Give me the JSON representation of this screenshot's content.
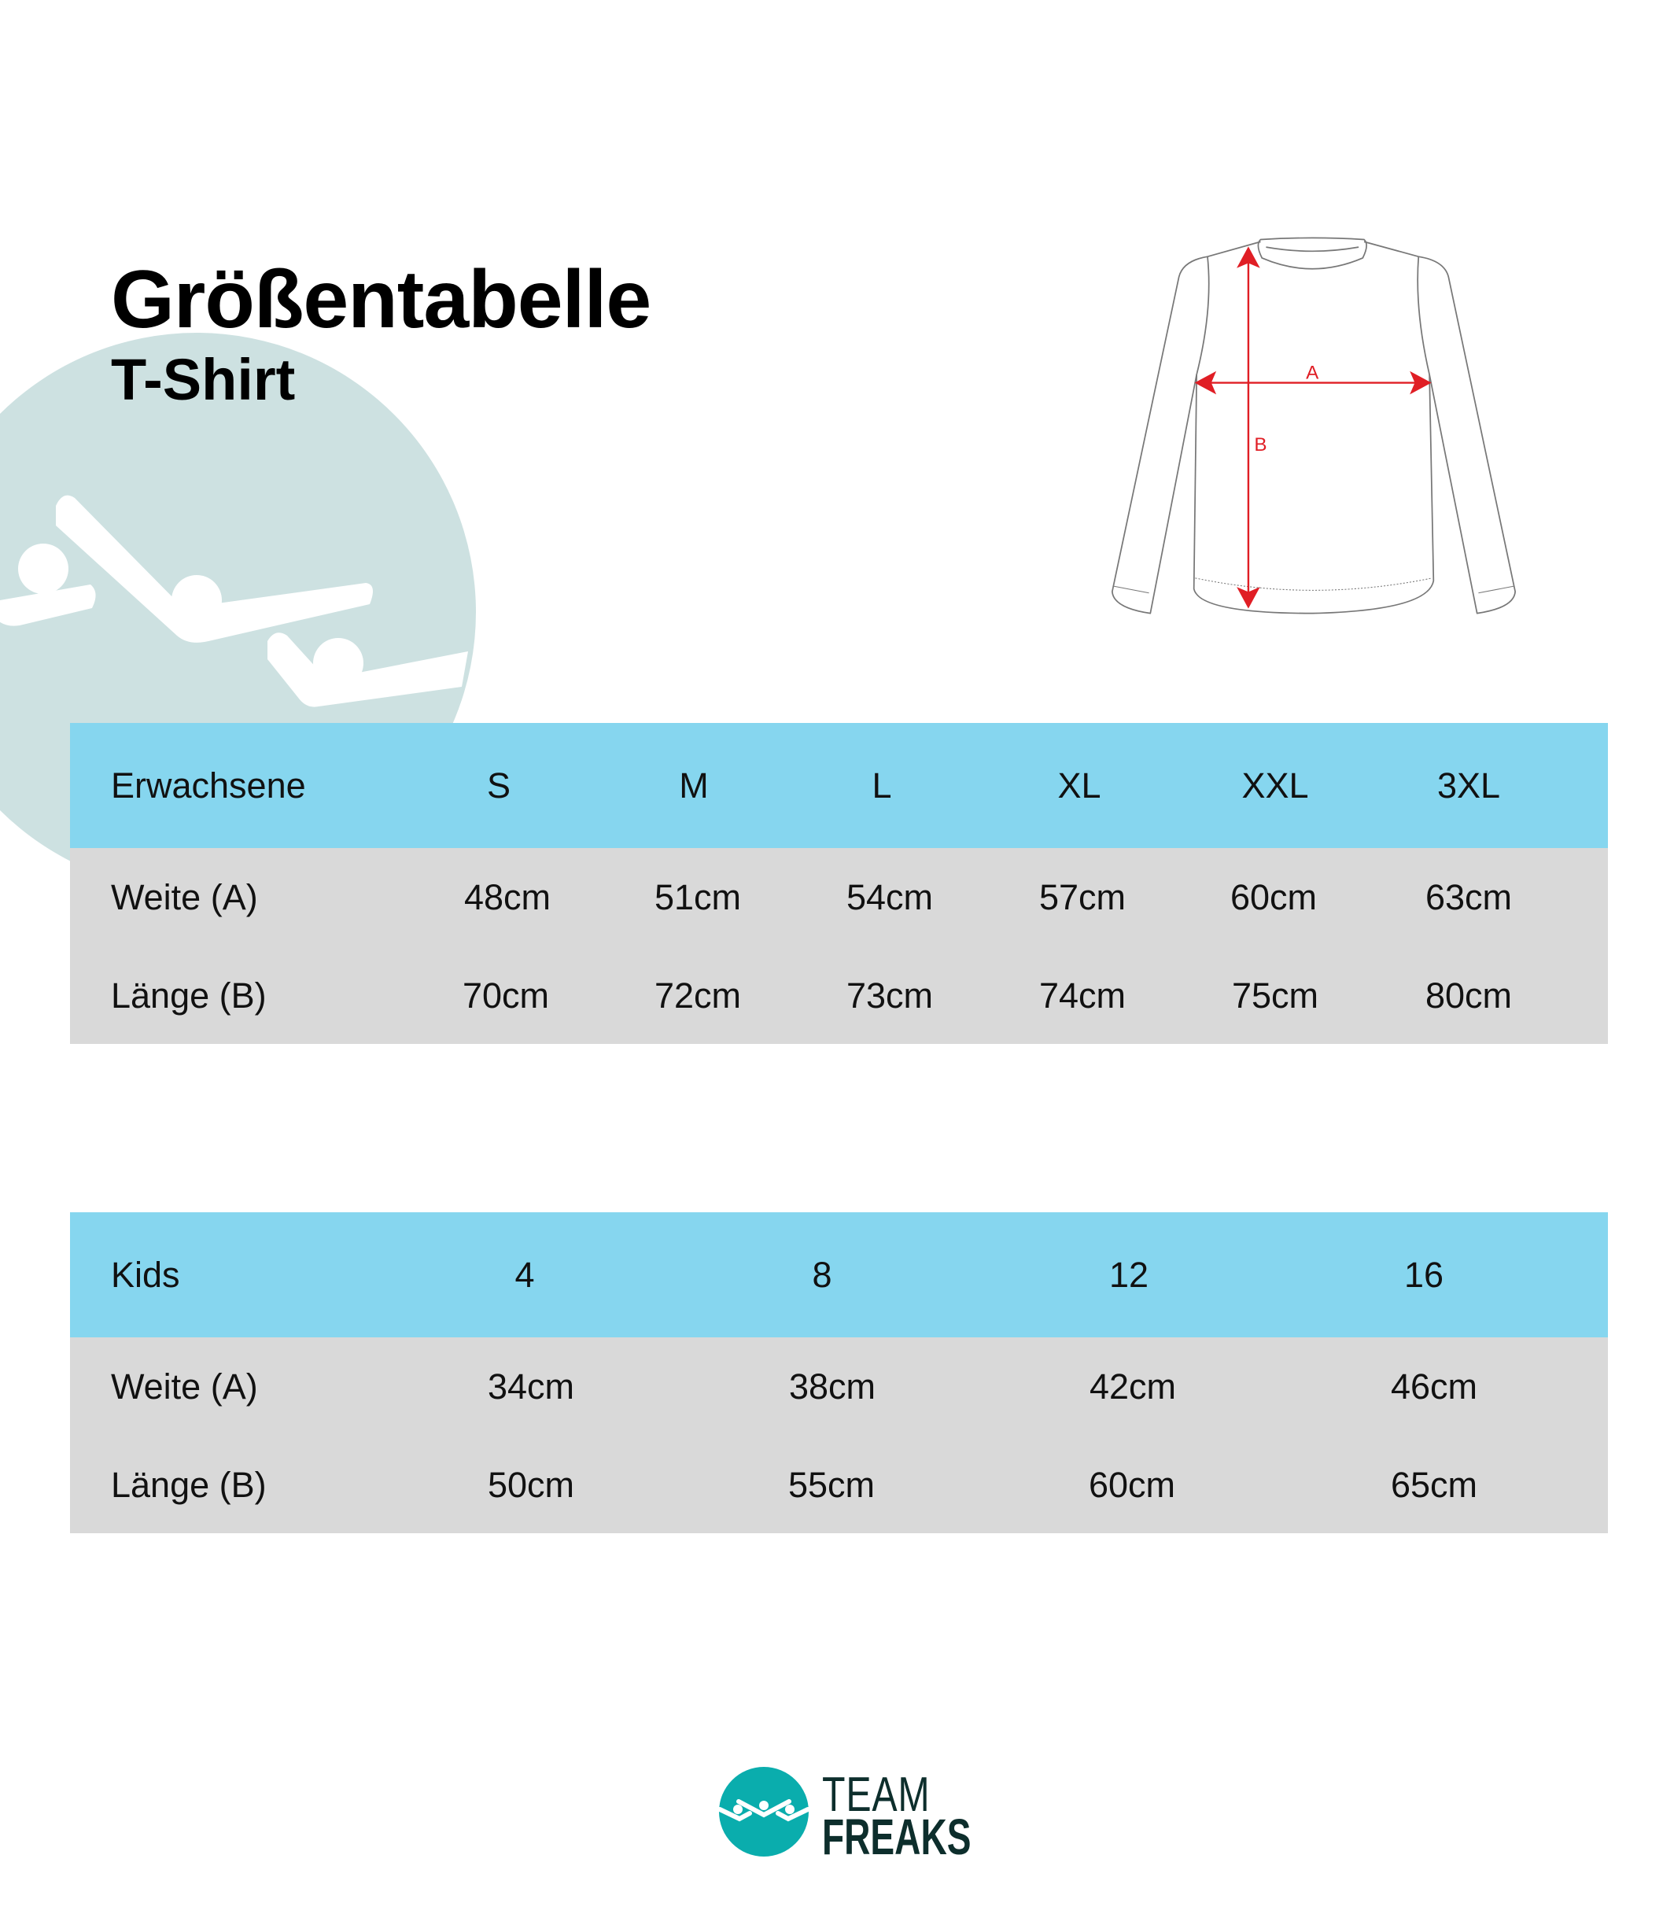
{
  "header": {
    "title": "Größentabelle",
    "subtitle": "T-Shirt"
  },
  "diagram": {
    "label_a": "A",
    "label_b": "B"
  },
  "adults": {
    "header": [
      "Erwachsene",
      "S",
      "M",
      "L",
      "XL",
      "XXL",
      "3XL"
    ],
    "rows": [
      {
        "label": "Weite (A)",
        "values": [
          "48cm",
          "51cm",
          "54cm",
          "57cm",
          "60cm",
          "63cm"
        ]
      },
      {
        "label": "Länge (B)",
        "values": [
          "70cm",
          "72cm",
          "73cm",
          "74cm",
          "75cm",
          "80cm"
        ]
      }
    ]
  },
  "kids": {
    "header": [
      "Kids",
      "4",
      "8",
      "12",
      "16"
    ],
    "rows": [
      {
        "label": "Weite (A)",
        "values": [
          "34cm",
          "38cm",
          "42cm",
          "46cm"
        ]
      },
      {
        "label": "Länge (B)",
        "values": [
          "50cm",
          "55cm",
          "60cm",
          "65cm"
        ]
      }
    ]
  },
  "logo": {
    "line1": "TEAM",
    "line2": "FREAKS"
  },
  "colors": {
    "header_bg": "#86d6ef",
    "body_bg": "#d9d9d9",
    "watermark": "#cde1e1",
    "brand_teal": "#0aadad",
    "brand_dark": "#0d2e2c",
    "measure_red": "#e01e25"
  }
}
